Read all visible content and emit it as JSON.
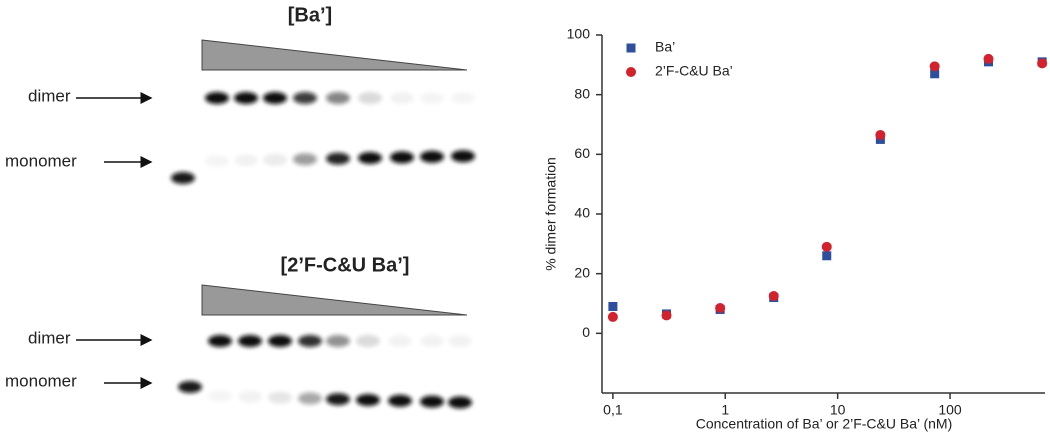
{
  "gel": {
    "panels": [
      {
        "title": "[Ba’]",
        "dimer": "dimer",
        "monomer": "monomer"
      },
      {
        "title": "[2’F-C&U Ba’]",
        "dimer": "dimer",
        "monomer": "monomer"
      }
    ]
  },
  "chart_data": {
    "type": "scatter",
    "x_label": "Concentration of Ba’ or 2’F-C&U Ba’ (nM)",
    "y_label": "% dimer formation",
    "x": [
      0.1,
      0.3,
      0.9,
      2.7,
      8,
      24,
      73,
      220,
      660
    ],
    "series": [
      {
        "name": "Ba’",
        "color": "#2d4f9e",
        "marker": "square",
        "values": [
          9,
          6.5,
          8,
          12,
          26,
          65,
          87,
          91,
          91
        ]
      },
      {
        "name": "2’F-C&U Ba’",
        "color": "#d2222d",
        "marker": "circle",
        "values": [
          5.5,
          6,
          8.5,
          12.5,
          29,
          66.5,
          89.5,
          92,
          90.5
        ]
      }
    ],
    "xscale": "log",
    "xlim": [
      0.08,
      700
    ],
    "xticks": [
      {
        "value": 0.1,
        "label": "0,1"
      },
      1,
      10,
      100
    ],
    "ylim": [
      -20,
      100
    ],
    "yticks": [
      0,
      20,
      40,
      60,
      80,
      100
    ],
    "legend": "upper left"
  }
}
